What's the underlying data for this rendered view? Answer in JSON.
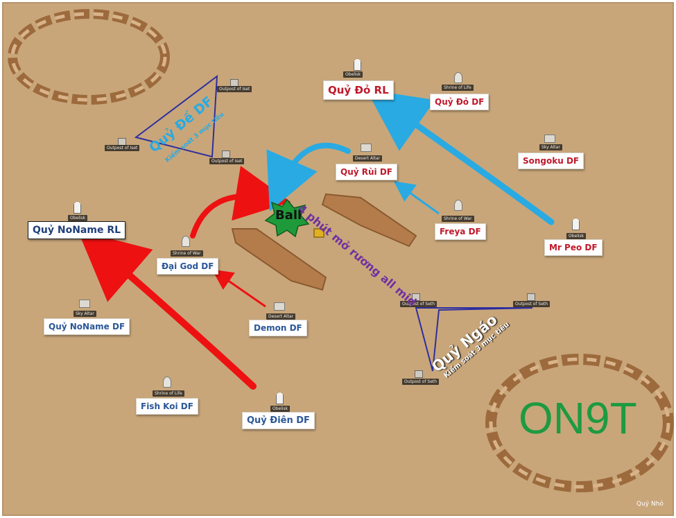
{
  "colors": {
    "background": "#c8a67a",
    "red_arrow": "#ee1111",
    "blue_arrow": "#29aae2",
    "brand_green": "#1e9a41",
    "ball_green": "#1f9a3a"
  },
  "team_labels": [
    {
      "text": "Quỷ Đỏ RL",
      "color": "red"
    },
    {
      "text": "Quỷ Đỏ DF",
      "color": "red"
    },
    {
      "text": "Songoku DF",
      "color": "red"
    },
    {
      "text": "Quỷ Rùi DF",
      "color": "red"
    },
    {
      "text": "Freya DF",
      "color": "red"
    },
    {
      "text": "Mr Peo DF",
      "color": "red"
    },
    {
      "text": "Quỷ NoName RL",
      "color": "dark"
    },
    {
      "text": "Đại God DF",
      "color": "blue"
    },
    {
      "text": "Quỷ NoName DF",
      "color": "blue"
    },
    {
      "text": "Demon DF",
      "color": "blue"
    },
    {
      "text": "Fish Koi DF",
      "color": "blue"
    },
    {
      "text": "Quỷ Điên DF",
      "color": "blue"
    }
  ],
  "structures": [
    {
      "caption": "Obelisk",
      "icon": "obelisk-icon"
    },
    {
      "caption": "Shrine of Life",
      "icon": "shrine-icon"
    },
    {
      "caption": "Sky Altar",
      "icon": "altar-icon"
    },
    {
      "caption": "Desert Altar",
      "icon": "altar-icon"
    },
    {
      "caption": "Shrine of War",
      "icon": "shrine-icon"
    },
    {
      "caption": "Obelisk",
      "icon": "obelisk-icon"
    },
    {
      "caption": "Obelisk",
      "icon": "obelisk-icon"
    },
    {
      "caption": "Shrine of War",
      "icon": "shrine-icon"
    },
    {
      "caption": "Sky Altar",
      "icon": "altar-icon"
    },
    {
      "caption": "Desert Altar",
      "icon": "altar-icon"
    },
    {
      "caption": "Shrine of Life",
      "icon": "shrine-icon"
    },
    {
      "caption": "Obelisk",
      "icon": "obelisk-icon"
    },
    {
      "caption": "Outpost of Iset",
      "icon": "outpost-icon"
    },
    {
      "caption": "Outpost of Iset",
      "icon": "outpost-icon"
    },
    {
      "caption": "Outpost of Iset",
      "icon": "outpost-icon"
    },
    {
      "caption": "Outpost of Seth",
      "icon": "outpost-icon"
    },
    {
      "caption": "Outpost of Seth",
      "icon": "outpost-icon"
    },
    {
      "caption": "Outpost of Seth",
      "icon": "outpost-icon"
    }
  ],
  "annotations": {
    "left_zone_title": "Quỷ Đế DF",
    "left_zone_subtitle": "Kiểm soát 3 mục tiêu",
    "right_zone_title": "Quỷ Ngáo",
    "right_zone_subtitle": "Kiểm soát 3 mục tiêu",
    "center_note": "4 phút mở rương all mid",
    "ball": "Ball"
  },
  "brand": "ON9T",
  "credit": "Quỷ Nhỏ"
}
